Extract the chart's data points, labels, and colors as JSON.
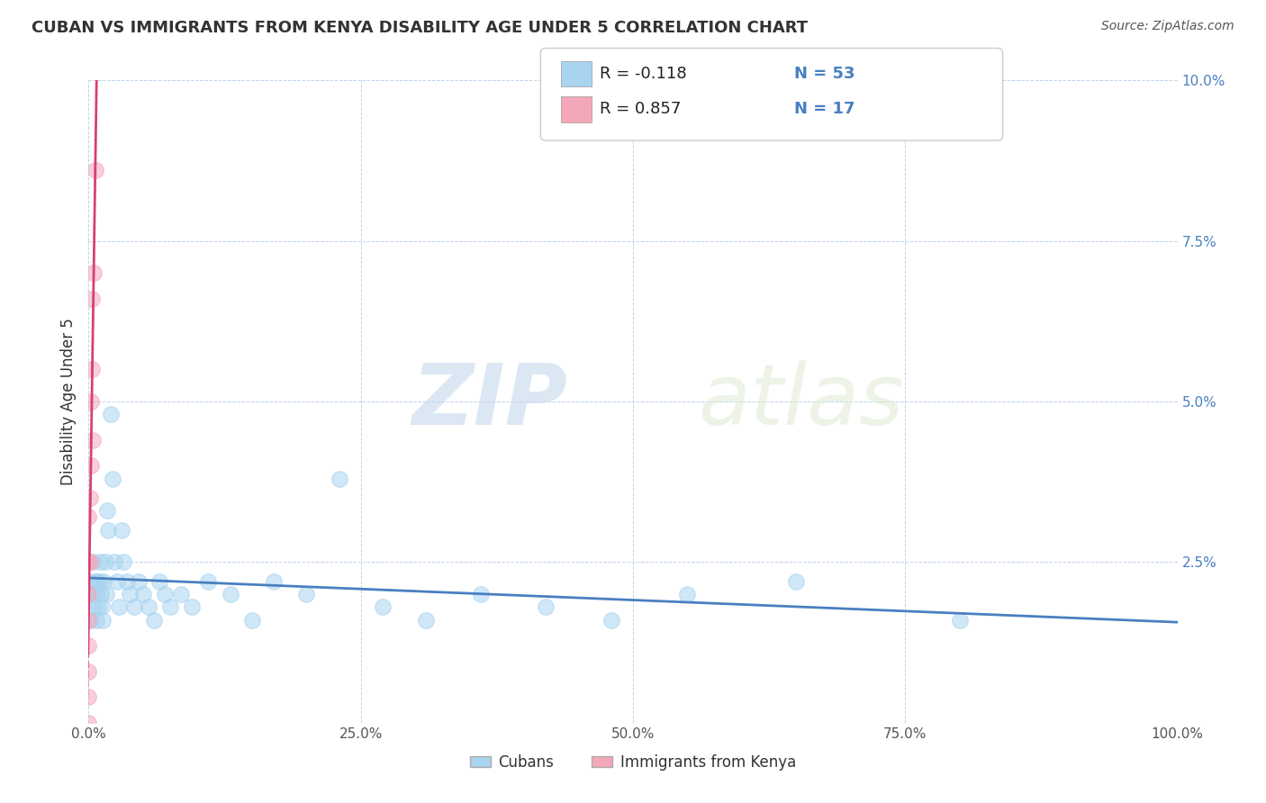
{
  "title": "CUBAN VS IMMIGRANTS FROM KENYA DISABILITY AGE UNDER 5 CORRELATION CHART",
  "source": "Source: ZipAtlas.com",
  "ylabel": "Disability Age Under 5",
  "legend_label_1": "Cubans",
  "legend_label_2": "Immigrants from Kenya",
  "legend_r1": "R = -0.118",
  "legend_n1": "N = 53",
  "legend_r2": "R = 0.857",
  "legend_n2": "N = 17",
  "color_cubans": "#a8d4f0",
  "color_kenya": "#f4a7b9",
  "color_line_cubans": "#4a7fc1",
  "color_line_kenya": "#d94070",
  "background": "#ffffff",
  "watermark_zip": "ZIP",
  "watermark_atlas": "atlas",
  "xlim": [
    0.0,
    1.0
  ],
  "ylim": [
    0.0,
    0.1
  ],
  "xticks": [
    0.0,
    0.25,
    0.5,
    0.75,
    1.0
  ],
  "xtick_labels": [
    "0.0%",
    "25.0%",
    "50.0%",
    "75.0%",
    "100.0%"
  ],
  "yticks": [
    0.0,
    0.025,
    0.05,
    0.075,
    0.1
  ],
  "ytick_labels": [
    "",
    "2.5%",
    "5.0%",
    "7.5%",
    "10.0%"
  ],
  "cubans_x": [
    0.001,
    0.001,
    0.003,
    0.004,
    0.005,
    0.006,
    0.007,
    0.007,
    0.008,
    0.009,
    0.01,
    0.01,
    0.011,
    0.012,
    0.013,
    0.014,
    0.015,
    0.016,
    0.017,
    0.018,
    0.02,
    0.022,
    0.024,
    0.026,
    0.028,
    0.03,
    0.032,
    0.035,
    0.038,
    0.042,
    0.046,
    0.05,
    0.055,
    0.06,
    0.065,
    0.07,
    0.075,
    0.085,
    0.095,
    0.11,
    0.13,
    0.15,
    0.17,
    0.2,
    0.23,
    0.27,
    0.31,
    0.36,
    0.42,
    0.48,
    0.55,
    0.65,
    0.8
  ],
  "cubans_y": [
    0.022,
    0.016,
    0.02,
    0.025,
    0.018,
    0.022,
    0.02,
    0.016,
    0.022,
    0.018,
    0.025,
    0.022,
    0.02,
    0.018,
    0.016,
    0.022,
    0.025,
    0.02,
    0.033,
    0.03,
    0.048,
    0.038,
    0.025,
    0.022,
    0.018,
    0.03,
    0.025,
    0.022,
    0.02,
    0.018,
    0.022,
    0.02,
    0.018,
    0.016,
    0.022,
    0.02,
    0.018,
    0.02,
    0.018,
    0.022,
    0.02,
    0.016,
    0.022,
    0.02,
    0.038,
    0.018,
    0.016,
    0.02,
    0.018,
    0.016,
    0.02,
    0.022,
    0.016
  ],
  "kenya_x": [
    0.0,
    0.0,
    0.0,
    0.0,
    0.0,
    0.0,
    0.0,
    0.0,
    0.001,
    0.001,
    0.002,
    0.002,
    0.003,
    0.003,
    0.004,
    0.005,
    0.006
  ],
  "kenya_y": [
    0.0,
    0.004,
    0.008,
    0.012,
    0.016,
    0.02,
    0.025,
    0.032,
    0.025,
    0.035,
    0.04,
    0.05,
    0.055,
    0.066,
    0.044,
    0.07,
    0.086
  ]
}
